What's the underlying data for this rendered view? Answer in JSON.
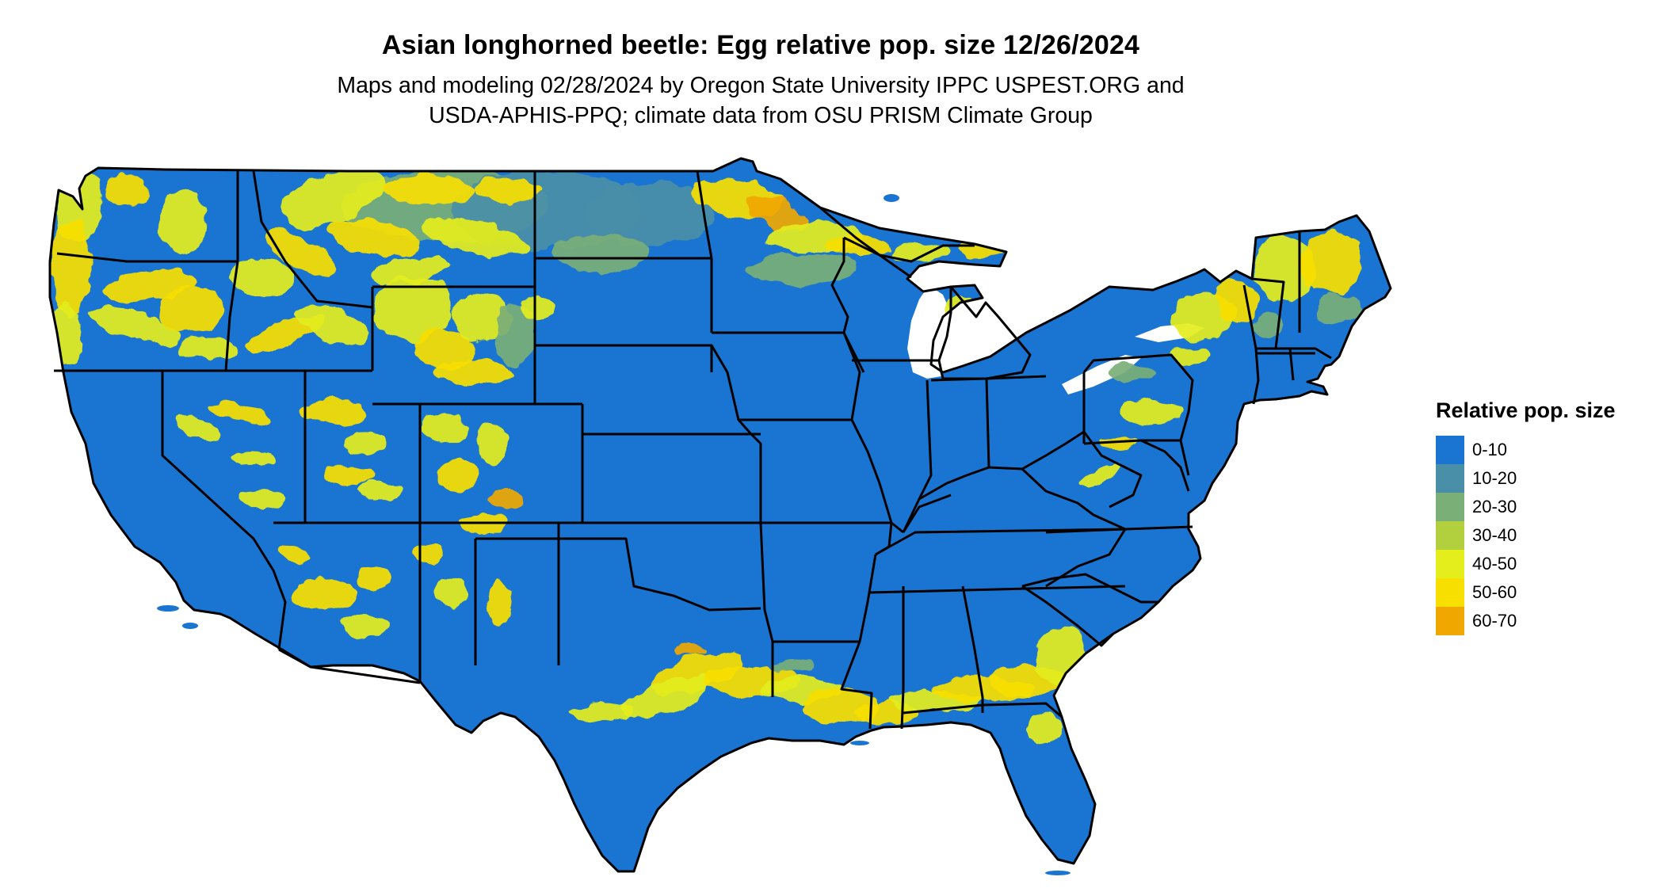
{
  "title": "Asian longhorned beetle: Egg relative pop. size 12/26/2024",
  "subtitle_line1": "Maps and modeling 02/28/2024 by Oregon State University IPPC USPEST.ORG and",
  "subtitle_line2": "USDA-APHIS-PPQ; climate data from OSU PRISM Climate Group",
  "legend": {
    "title": "Relative pop. size",
    "items": [
      {
        "label": "0-10",
        "color": "#1a74d2"
      },
      {
        "label": "10-20",
        "color": "#4a8fa8"
      },
      {
        "label": "20-30",
        "color": "#7aaf78"
      },
      {
        "label": "30-40",
        "color": "#b2d03e"
      },
      {
        "label": "40-50",
        "color": "#e4ee1c"
      },
      {
        "label": "50-60",
        "color": "#f7df00"
      },
      {
        "label": "60-70",
        "color": "#f0a800"
      }
    ]
  },
  "map": {
    "base_color": "#1a74d2",
    "border_color": "#000000"
  }
}
